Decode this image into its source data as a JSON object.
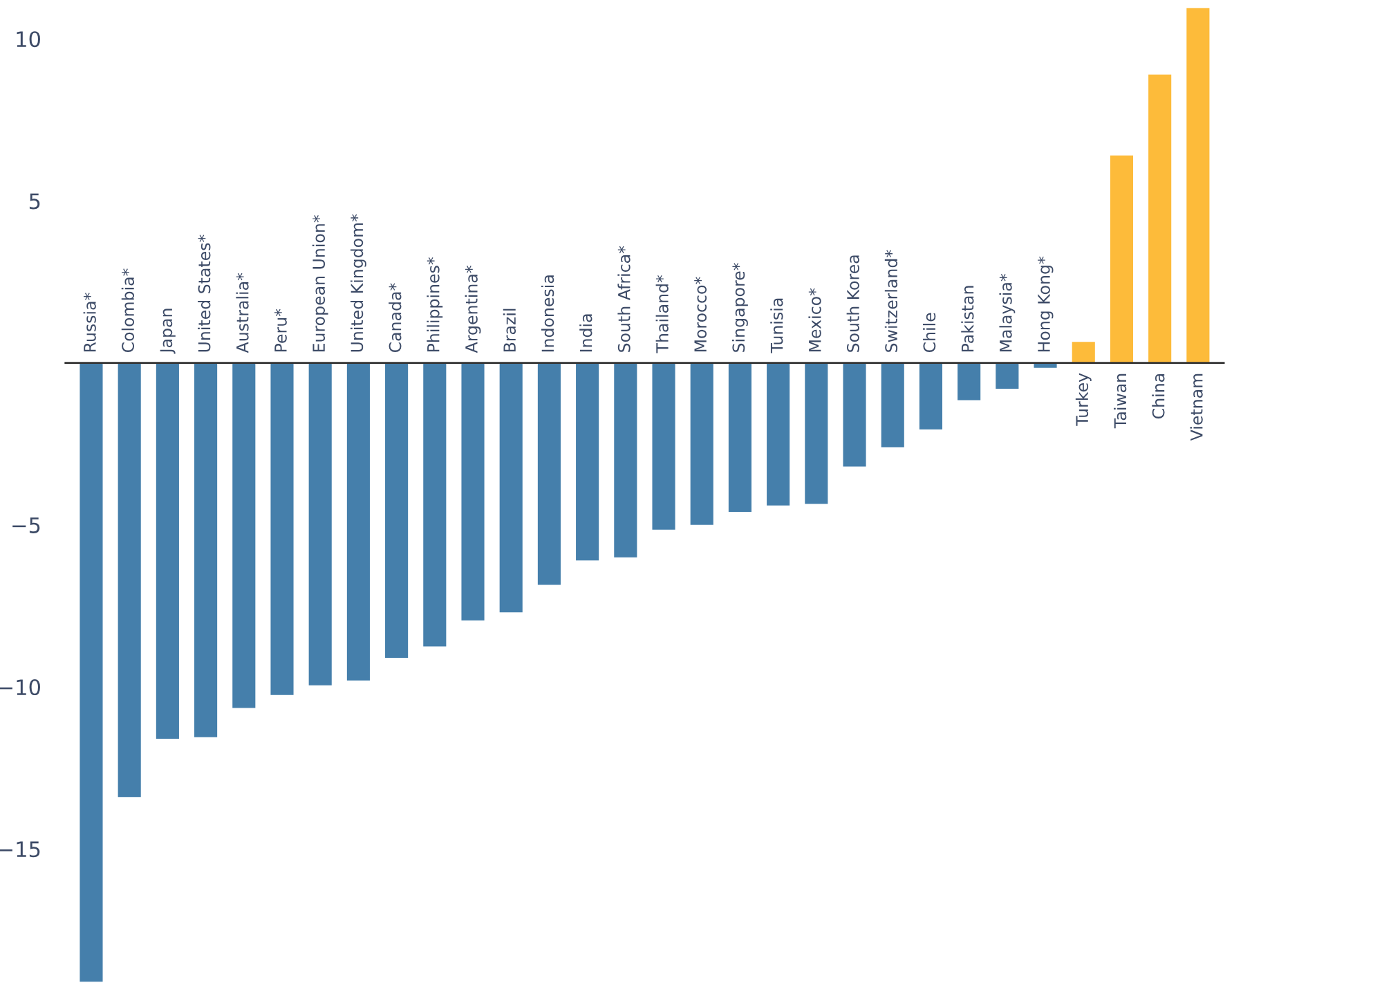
{
  "chart_data": {
    "type": "bar",
    "categories": [
      "Russia*",
      "Colombia*",
      "Japan",
      "United States*",
      "Australia*",
      "Peru*",
      "European Union*",
      "United Kingdom*",
      "Canada*",
      "Philippines*",
      "Argentina*",
      "Brazil",
      "Indonesia",
      "India",
      "South Africa*",
      "Thailand*",
      "Morocco*",
      "Singapore*",
      "Tunisia",
      "Mexico*",
      "South Korea",
      "Switzerland*",
      "Chile",
      "Pakistan",
      "Malaysia*",
      "Hong Kong*",
      "Turkey",
      "Taiwan",
      "China",
      "Vietnam"
    ],
    "values": [
      -19.1,
      -13.4,
      -11.6,
      -11.55,
      -10.65,
      -10.25,
      -9.95,
      -9.8,
      -9.1,
      -8.75,
      -7.95,
      -7.7,
      -6.85,
      -6.1,
      -6.0,
      -5.15,
      -5.0,
      -4.6,
      -4.4,
      -4.35,
      -3.2,
      -2.6,
      -2.05,
      -1.15,
      -0.8,
      -0.15,
      0.65,
      6.4,
      8.9,
      10.95
    ],
    "colors": [
      "#457fab",
      "#457fab",
      "#457fab",
      "#457fab",
      "#457fab",
      "#457fab",
      "#457fab",
      "#457fab",
      "#457fab",
      "#457fab",
      "#457fab",
      "#457fab",
      "#457fab",
      "#457fab",
      "#457fab",
      "#457fab",
      "#457fab",
      "#457fab",
      "#457fab",
      "#457fab",
      "#457fab",
      "#457fab",
      "#457fab",
      "#457fab",
      "#457fab",
      "#457fab",
      "#fdbb3a",
      "#fdbb3a",
      "#fdbb3a",
      "#fdbb3a"
    ],
    "ylim": [
      -19.2,
      11.2
    ],
    "yticks": [
      {
        "value": -15,
        "label": "−15"
      },
      {
        "value": -10,
        "label": "−10"
      },
      {
        "value": -5,
        "label": "−5"
      },
      5,
      10
    ],
    "grid": false,
    "legend": false
  }
}
